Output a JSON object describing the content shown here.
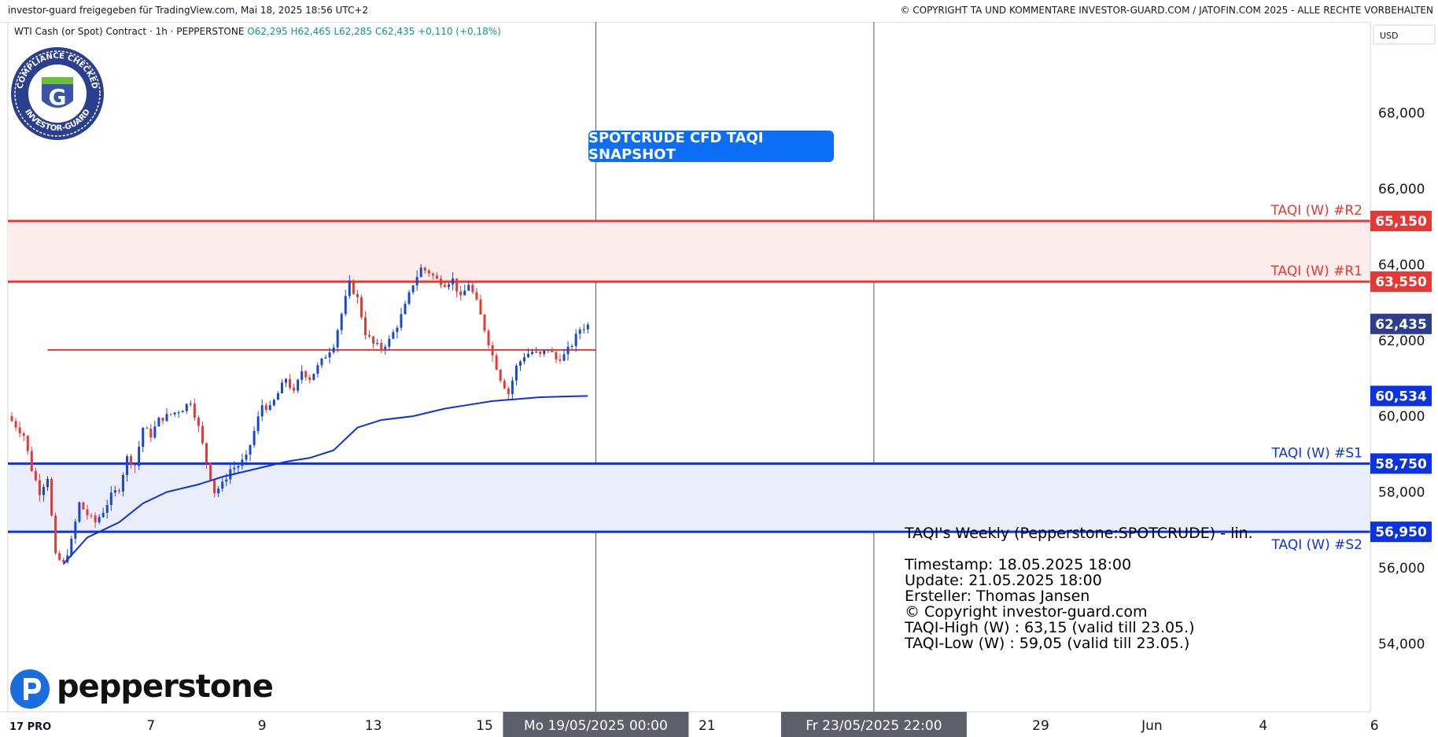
{
  "header": {
    "left": "investor-guard freigegeben für TradingView.com, Mai 18, 2025 18:56 UTC+2",
    "right": "© COPYRIGHT TA UND KOMMENTARE INVESTOR-GUARD.COM / JATOFIN.COM 2025 - ALLE RECHTE VORBEHALTEN"
  },
  "legend": {
    "symbol": "WTI Cash (or Spot) Contract · 1h · PEPPERSTONE",
    "open": "O62,295",
    "high": "H62,465",
    "low": "L62,285",
    "close": "C62,435",
    "change": "+0,110 (+0,18%)"
  },
  "currency": "USD",
  "snapshot_label": "SPOTCRUDE CFD TAQI SNAPSHOT",
  "badge": {
    "top_text": "COMPLIANCE CHECKED",
    "bottom_text": "INVESTOR-GUARD",
    "letter": "G"
  },
  "brand": "pepperstone",
  "tv_logo": "17 PRO",
  "info": {
    "title": "TAQI's Weekly (Pepperstone:SPOTCRUDE) - lin.",
    "lines": [
      "Timestamp: 18.05.2025 18:00",
      "Update: 21.05.2025 18:00",
      "Ersteller: Thomas Jansen",
      "© Copyright investor-guard.com",
      "TAQI-High (W) : 63,15 (valid till 23.05.)",
      "TAQI-Low (W) : 59,05 (valid till 23.05.)"
    ]
  },
  "colors": {
    "red": "#e53935",
    "blue": "#0b34e0",
    "up": "#1848cc",
    "down": "#e53935",
    "ma": "#1030d8"
  },
  "chart_data": {
    "type": "candlestick",
    "title": "",
    "ylim": [
      52.2,
      70.4
    ],
    "y_ticks": [
      {
        "value": 54,
        "label": "54,000"
      },
      {
        "value": 56,
        "label": "56,000"
      },
      {
        "value": 58,
        "label": "58,000"
      },
      {
        "value": 60,
        "label": "60,000"
      },
      {
        "value": 62,
        "label": "62,000"
      },
      {
        "value": 64,
        "label": "64,000"
      },
      {
        "value": 66,
        "label": "66,000"
      },
      {
        "value": 68,
        "label": "68,000"
      }
    ],
    "x_ticks": [
      {
        "slot": 18,
        "label": "7"
      },
      {
        "slot": 32,
        "label": "9"
      },
      {
        "slot": 46,
        "label": "13"
      },
      {
        "slot": 60,
        "label": "15"
      },
      {
        "slot": 88,
        "label": "21"
      },
      {
        "slot": 130,
        "label": "29"
      },
      {
        "slot": 144,
        "label": "Jun"
      },
      {
        "slot": 158,
        "label": "4"
      },
      {
        "slot": 172,
        "label": "6"
      }
    ],
    "x_markers": [
      {
        "slot": 74,
        "label": "Mo 19/05/2025   00:00"
      },
      {
        "slot": 109,
        "label": "Fr 23/05/2025   22:00"
      }
    ],
    "levels": [
      {
        "name": "TAQI (W) #R2",
        "value": 65.15,
        "label": "65,150",
        "color": "red"
      },
      {
        "name": "TAQI (W) #R1",
        "value": 63.55,
        "label": "63,550",
        "color": "red"
      },
      {
        "name": "TAQI (W) #S1",
        "value": 58.75,
        "label": "58,750",
        "color": "blue"
      },
      {
        "name": "TAQI (W) #S2",
        "value": 56.95,
        "label": "56,950",
        "color": "blue"
      }
    ],
    "zones": [
      {
        "from": 63.55,
        "to": 65.15,
        "color": "red"
      },
      {
        "from": 56.95,
        "to": 58.75,
        "color": "blue"
      }
    ],
    "mid_line": {
      "value": 61.75,
      "x_start_slot": 5,
      "x_end_slot": 74
    },
    "price_tags": [
      {
        "value": 62.435,
        "label": "62,435",
        "kind": "last"
      },
      {
        "value": 60.534,
        "label": "60,534",
        "kind": "ma"
      }
    ],
    "series": [
      {
        "name": "SPOTCRUDE 1h",
        "kind": "price_path",
        "points": [
          [
            0,
            60.0
          ],
          [
            2,
            59.5
          ],
          [
            3,
            58.6
          ],
          [
            4,
            58.0
          ],
          [
            5,
            58.4
          ],
          [
            6,
            56.3
          ],
          [
            7,
            56.1
          ],
          [
            8,
            56.7
          ],
          [
            9,
            57.7
          ],
          [
            10,
            57.4
          ],
          [
            11,
            57.2
          ],
          [
            12,
            57.5
          ],
          [
            13,
            57.9
          ],
          [
            14,
            58.1
          ],
          [
            15,
            58.9
          ],
          [
            16,
            58.7
          ],
          [
            17,
            59.7
          ],
          [
            18,
            59.5
          ],
          [
            19,
            59.9
          ],
          [
            20,
            60.0
          ],
          [
            21,
            60.1
          ],
          [
            22,
            60.2
          ],
          [
            23,
            60.4
          ],
          [
            24,
            59.7
          ],
          [
            25,
            58.8
          ],
          [
            26,
            58.0
          ],
          [
            27,
            58.2
          ],
          [
            28,
            58.6
          ],
          [
            29,
            58.7
          ],
          [
            30,
            58.9
          ],
          [
            31,
            59.6
          ],
          [
            32,
            60.3
          ],
          [
            33,
            60.2
          ],
          [
            34,
            60.6
          ],
          [
            35,
            61.0
          ],
          [
            36,
            60.6
          ],
          [
            37,
            61.2
          ],
          [
            38,
            61.0
          ],
          [
            39,
            61.3
          ],
          [
            40,
            61.6
          ],
          [
            41,
            61.9
          ],
          [
            42,
            62.7
          ],
          [
            43,
            63.5
          ],
          [
            44,
            63.1
          ],
          [
            45,
            62.2
          ],
          [
            46,
            61.9
          ],
          [
            47,
            61.8
          ],
          [
            48,
            62.0
          ],
          [
            49,
            62.4
          ],
          [
            50,
            62.9
          ],
          [
            51,
            63.5
          ],
          [
            52,
            63.9
          ],
          [
            53,
            63.8
          ],
          [
            54,
            63.6
          ],
          [
            55,
            63.5
          ],
          [
            56,
            63.6
          ],
          [
            57,
            63.1
          ],
          [
            58,
            63.5
          ],
          [
            59,
            63.0
          ],
          [
            60,
            62.3
          ],
          [
            61,
            61.6
          ],
          [
            62,
            61.0
          ],
          [
            63,
            60.6
          ],
          [
            64,
            61.3
          ],
          [
            65,
            61.6
          ],
          [
            66,
            61.7
          ],
          [
            67,
            61.6
          ],
          [
            68,
            61.8
          ],
          [
            69,
            61.5
          ],
          [
            70,
            61.6
          ],
          [
            71,
            61.9
          ],
          [
            72,
            62.3
          ],
          [
            73,
            62.4
          ]
        ]
      },
      {
        "name": "MA",
        "kind": "line",
        "points": [
          [
            7,
            56.1
          ],
          [
            10,
            56.8
          ],
          [
            14,
            57.2
          ],
          [
            17,
            57.7
          ],
          [
            20,
            58.0
          ],
          [
            24,
            58.2
          ],
          [
            27,
            58.4
          ],
          [
            31,
            58.6
          ],
          [
            35,
            58.8
          ],
          [
            38,
            58.9
          ],
          [
            41,
            59.1
          ],
          [
            44,
            59.7
          ],
          [
            47,
            59.9
          ],
          [
            51,
            60.0
          ],
          [
            55,
            60.2
          ],
          [
            58,
            60.3
          ],
          [
            61,
            60.4
          ],
          [
            64,
            60.45
          ],
          [
            67,
            60.5
          ],
          [
            70,
            60.52
          ],
          [
            73,
            60.534
          ]
        ]
      }
    ]
  }
}
